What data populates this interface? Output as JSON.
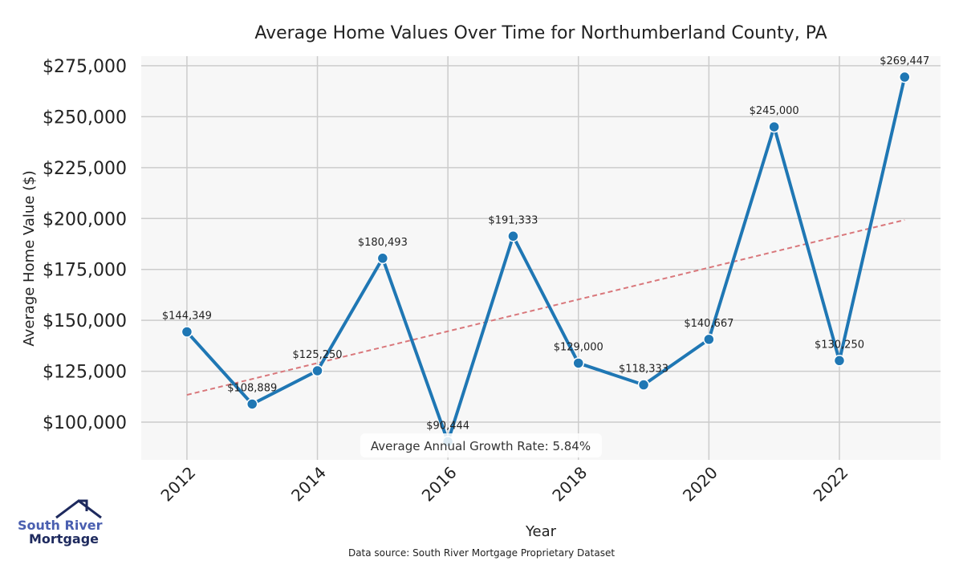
{
  "chart_data": {
    "type": "line",
    "title": "Average Home Values Over Time for Northumberland County, PA",
    "xlabel": "Year",
    "ylabel": "Average Home Value ($)",
    "x": [
      2012,
      2013,
      2014,
      2015,
      2016,
      2017,
      2018,
      2019,
      2020,
      2021,
      2022,
      2023
    ],
    "series": [
      {
        "values": [
          144349,
          108889,
          125250,
          180493,
          90444,
          191333,
          129000,
          118333,
          140667,
          245000,
          130250,
          269447
        ],
        "labels": [
          "$144,349",
          "$108,889",
          "$125,250",
          "$180,493",
          "$90,444",
          "$191,333",
          "$129,000",
          "$118,333",
          "$140,667",
          "$245,000",
          "$130,250",
          "$269,447"
        ],
        "color": "#1f77b4"
      }
    ],
    "trendline": {
      "start": [
        2012,
        113400
      ],
      "end": [
        2023,
        199300
      ],
      "color": "#d9777b",
      "style": "dashed"
    },
    "xticks": [
      2012,
      2014,
      2016,
      2018,
      2020,
      2022
    ],
    "yticks": [
      100000,
      125000,
      150000,
      175000,
      200000,
      225000,
      250000,
      275000
    ],
    "ytick_labels": [
      "$100,000",
      "$125,000",
      "$150,000",
      "$175,000",
      "$200,000",
      "$225,000",
      "$250,000",
      "$275,000"
    ],
    "xlim": [
      2011.3,
      2023.55
    ],
    "ylim": [
      81500,
      279700
    ],
    "grid": true,
    "annotation": "Average Annual Growth Rate: 5.84%",
    "background": "#f7f7f7"
  },
  "source": "Data source: South River Mortgage Proprietary Dataset",
  "logo": {
    "line1": "South River",
    "line2": "Mortgage",
    "color1": "#4a5fb0",
    "color2": "#1e2a5e"
  }
}
